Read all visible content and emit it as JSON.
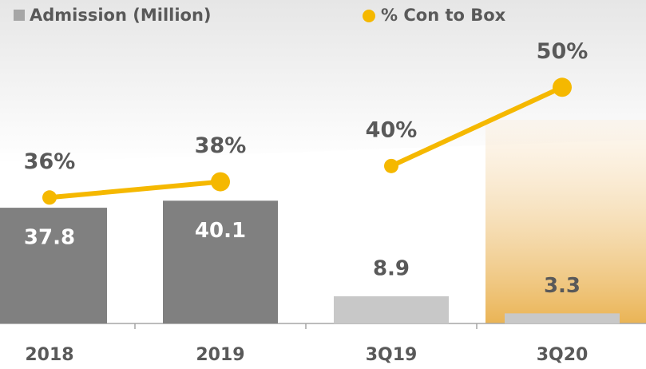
{
  "chart_data": {
    "type": "bar",
    "categories": [
      "2018",
      "2019",
      "3Q19",
      "3Q20"
    ],
    "series": [
      {
        "name": "Admission (Million)",
        "type": "bar",
        "colors": [
          "#808080",
          "#808080",
          "#c8c8c8",
          "#c8c8c8"
        ],
        "values": [
          37.8,
          40.1,
          8.9,
          3.3
        ]
      },
      {
        "name": "% Con to Box",
        "type": "line",
        "axis": "y2",
        "color": "#f5b800",
        "values": [
          36,
          38,
          40,
          50
        ],
        "value_labels": [
          "36%",
          "38%",
          "40%",
          "50%"
        ]
      }
    ],
    "ylim": [
      0,
      90
    ],
    "y2lim": [
      20,
      55
    ]
  }
}
